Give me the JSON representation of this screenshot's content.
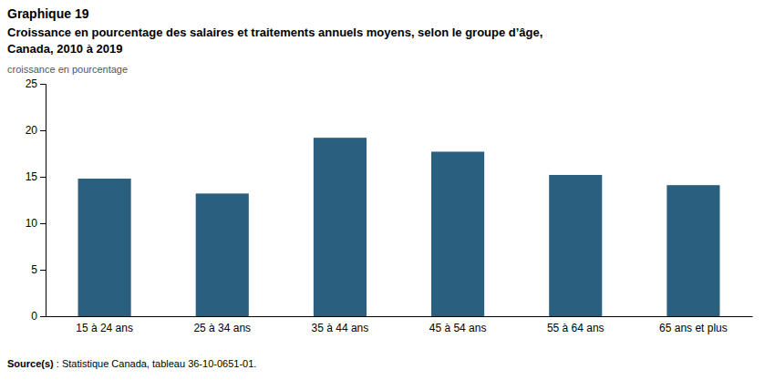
{
  "chart_data": {
    "type": "bar",
    "title": "Graphique 19",
    "subtitle": [
      "Croissance en pourcentage des salaires et traitements annuels moyens, selon le groupe d’âge,",
      "Canada, 2010 à 2019"
    ],
    "y_label": "croissance en pourcentage",
    "categories": [
      "15 à 24 ans",
      "25 à 34 ans",
      "35 à 44 ans",
      "45 à 54 ans",
      "55 à 64 ans",
      "65 ans et plus"
    ],
    "values": [
      14.8,
      13.2,
      19.2,
      17.7,
      15.2,
      14.1
    ],
    "color": "#2A5F7F",
    "ylim": [
      0,
      25
    ],
    "yticks": [
      0,
      5,
      10,
      15,
      20,
      25
    ],
    "grid": false,
    "source": [
      "Source(s)",
      " : Statistique Canada, tableau 36-10-0651-01."
    ]
  }
}
